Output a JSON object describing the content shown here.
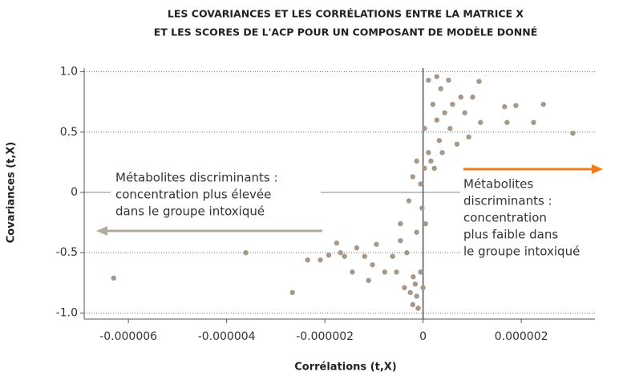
{
  "chart_data": {
    "type": "scatter",
    "title": [
      "LES COVARIANCES ET LES CORRÉLATIONS ENTRE LA MATRICE X",
      "ET LES SCORES DE L'ACP POUR UN COMPOSANT DE MODÈLE DONNÉ"
    ],
    "x_label": "Corrélations (t,X)",
    "y_label": "Covariances (t,X)",
    "xlim": [
      -6.9e-06,
      3.5e-06
    ],
    "ylim": [
      -1.05,
      1.03
    ],
    "xticks": [
      -6e-06,
      -4e-06,
      -2e-06,
      0,
      2e-06
    ],
    "yticks": [
      {
        "value": 1.0,
        "label": "1.0"
      },
      0.5,
      0,
      -0.5,
      {
        "value": -1.0,
        "label": "-1.0"
      }
    ],
    "grid": true,
    "series": [
      {
        "color": "#a89888",
        "x": [
          -2.35e-06,
          -1.76e-06,
          -1.6e-06,
          -2.09e-06,
          -1.92e-06,
          -1.68e-06,
          -1.44e-06,
          -1.35e-06,
          -1.19e-06,
          -1.11e-06,
          -1.03e-06,
          -9.5e-07,
          -7.8e-07,
          -6.2e-07,
          -5.4e-07,
          -4.6e-07,
          -4.6e-07,
          -3.8e-07,
          -3.3e-07,
          -2.9e-07,
          -2.6e-07,
          -2.1e-07,
          -2.1e-07,
          -2e-07,
          -1.6e-07,
          -1.3e-07,
          -1.3e-07,
          -1.3e-07,
          -1e-07,
          -5e-08,
          -5e-08,
          -2e-08,
          0,
          3e-08,
          3e-08,
          5e-08,
          1.1e-07,
          1.1e-07,
          1.6e-07,
          2e-07,
          2.3e-07,
          2.8e-07,
          2.8e-07,
          3.3e-07,
          3.6e-07,
          3.9e-07,
          4.4e-07,
          5.2e-07,
          5.5e-07,
          6e-07,
          6.9e-07,
          7.7e-07,
          8.5e-07,
          9.3e-07,
          1.01e-06,
          1.14e-06,
          1.17e-06,
          1.66e-06,
          1.71e-06,
          1.89e-06,
          2.25e-06,
          2.45e-06,
          3.05e-06,
          -2.66e-06,
          -3.61e-06,
          -6.3e-06
        ],
        "values": [
          -0.56,
          -0.42,
          -0.53,
          -0.56,
          -0.52,
          -0.5,
          -0.66,
          -0.46,
          -0.53,
          -0.73,
          -0.6,
          -0.43,
          -0.66,
          -0.53,
          -0.66,
          -0.4,
          -0.26,
          -0.79,
          -0.5,
          -0.07,
          -0.83,
          0.13,
          -0.93,
          -0.7,
          -0.76,
          0.26,
          -0.33,
          -0.86,
          -0.96,
          0.07,
          -0.66,
          -0.13,
          -0.79,
          0.2,
          0.53,
          -0.26,
          0.93,
          0.33,
          0.26,
          0.73,
          0.2,
          0.96,
          0.6,
          0.43,
          0.86,
          0.33,
          0.66,
          0.93,
          0.53,
          0.73,
          0.4,
          0.79,
          0.66,
          0.46,
          0.79,
          0.92,
          0.58,
          0.71,
          0.58,
          0.72,
          0.58,
          0.73,
          0.49,
          -0.83,
          -0.5,
          -0.71
        ]
      }
    ],
    "annotations": [
      {
        "lines": [
          "Métabolites discriminants :",
          "concentration plus élevée",
          "dans le groupe intoxiqué"
        ],
        "color": "#b3aa9e"
      },
      {
        "lines": [
          "Métabolites",
          "discriminants :",
          "concentration",
          "plus faible dans",
          "le groupe intoxiqué"
        ],
        "color": "#f07d1a"
      }
    ]
  }
}
